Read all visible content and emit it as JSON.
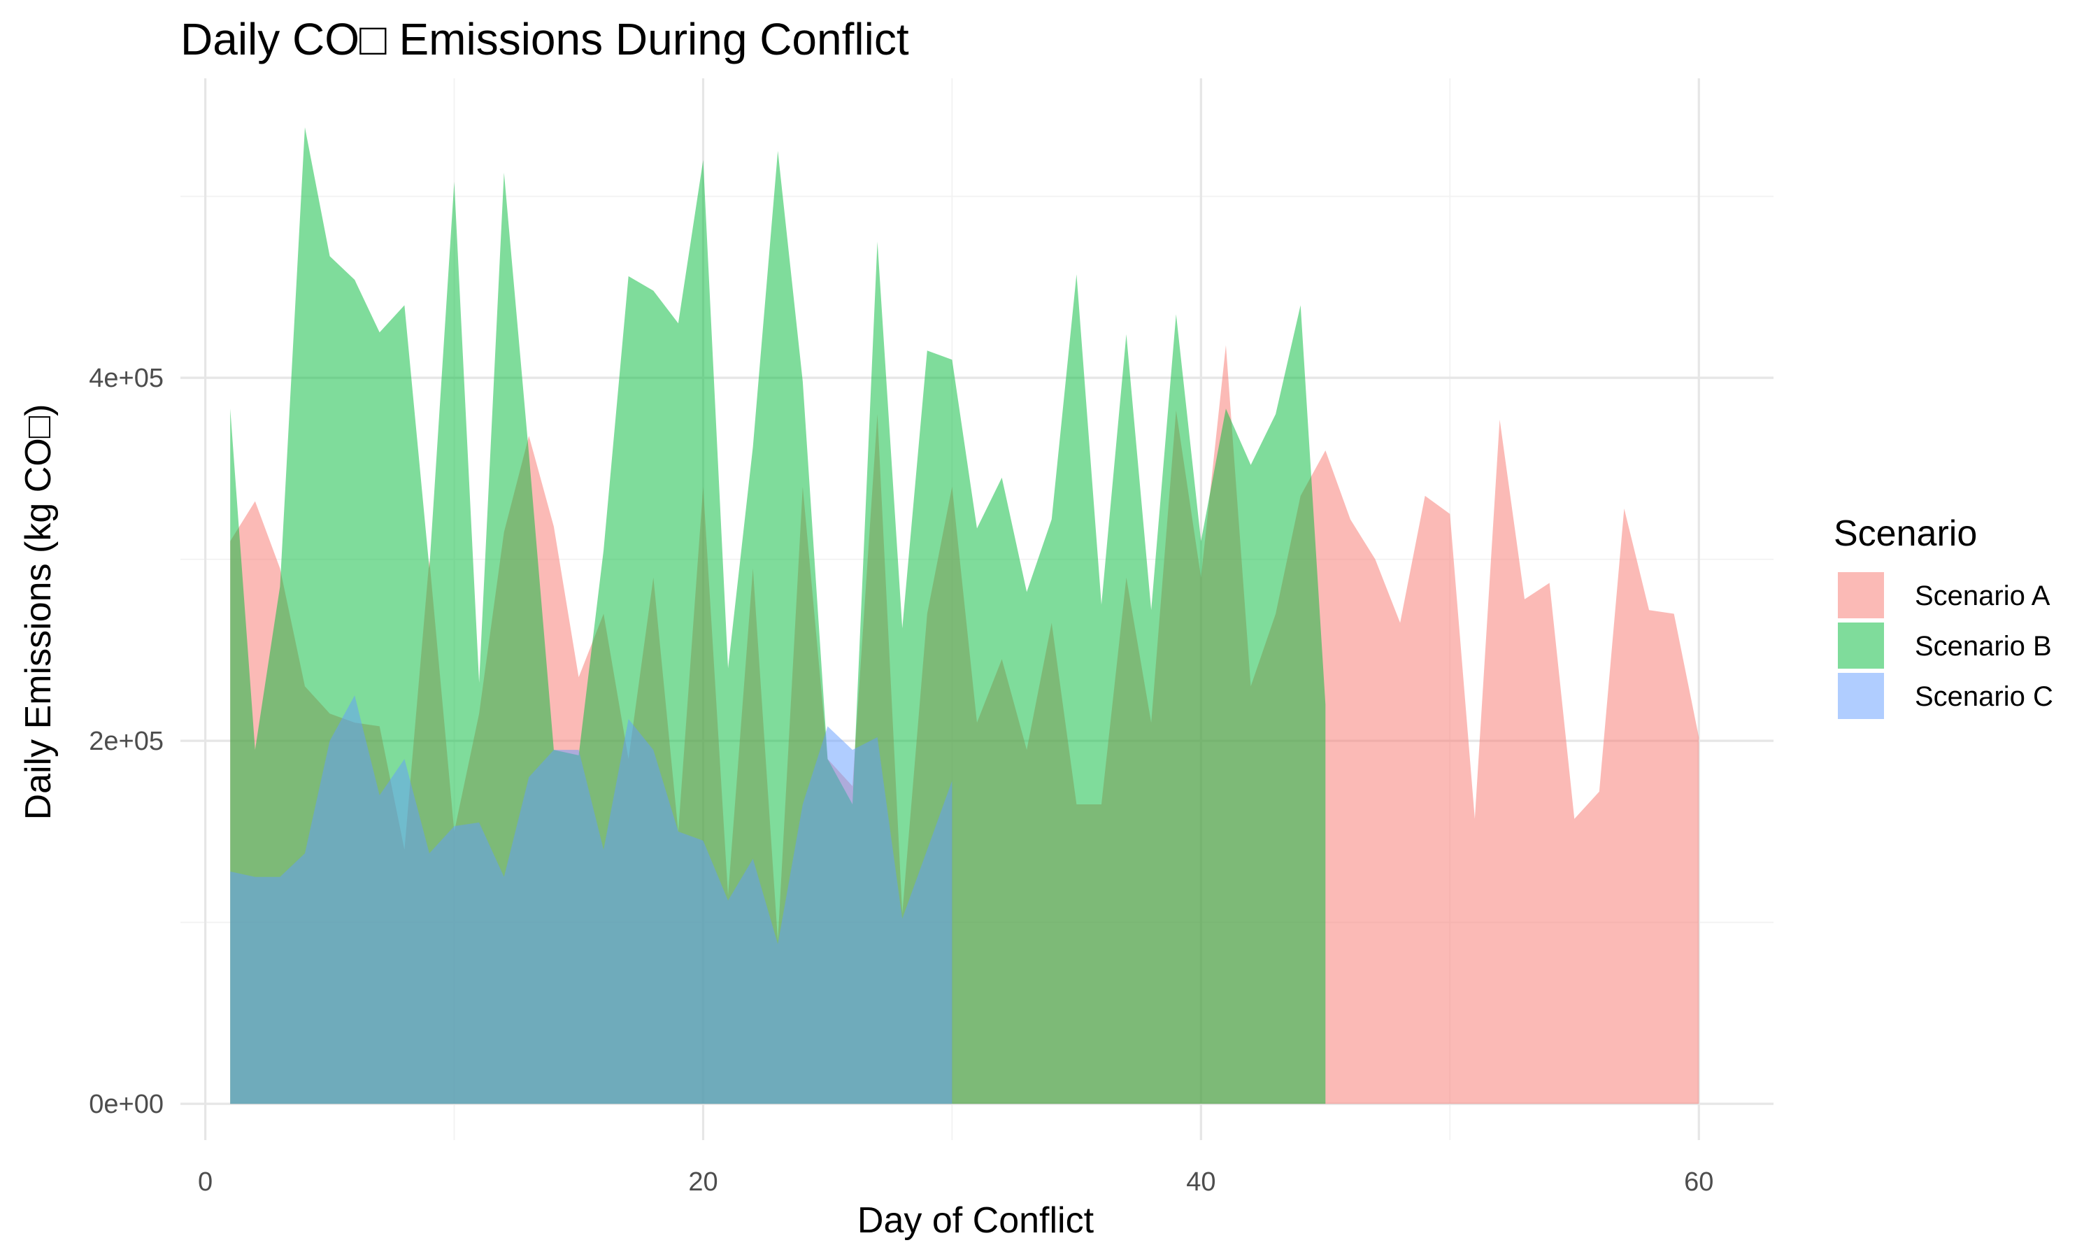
{
  "chart_data": {
    "type": "area",
    "title": "Daily CO□ Emissions During Conflict",
    "xlabel": "Day of Conflict",
    "ylabel": "Daily Emissions (kg CO□)",
    "xlim": [
      -1,
      63
    ],
    "ylim": [
      -20000,
      565000
    ],
    "x_ticks": [
      0,
      20,
      40,
      60
    ],
    "x_tick_labels": [
      "0",
      "20",
      "40",
      "60"
    ],
    "y_ticks": [
      0,
      200000,
      400000
    ],
    "y_tick_labels": [
      "0e+00",
      "2e+05",
      "4e+05"
    ],
    "grid": true,
    "legend_title": "Scenario",
    "legend_position": "right",
    "series": [
      {
        "name": "Scenario A",
        "color": "#F8766D",
        "opacity": 0.5,
        "x": [
          1,
          2,
          3,
          4,
          5,
          6,
          7,
          8,
          9,
          10,
          11,
          12,
          13,
          14,
          15,
          16,
          17,
          18,
          19,
          20,
          21,
          22,
          23,
          24,
          25,
          26,
          27,
          28,
          29,
          30,
          31,
          32,
          33,
          34,
          35,
          36,
          37,
          38,
          39,
          40,
          41,
          42,
          43,
          44,
          45,
          46,
          47,
          48,
          49,
          50,
          51,
          52,
          53,
          54,
          55,
          56,
          57,
          58,
          59,
          60
        ],
        "values": [
          310000,
          332000,
          295000,
          230000,
          215000,
          210000,
          208000,
          140000,
          300000,
          150000,
          215000,
          315000,
          368000,
          318000,
          235000,
          270000,
          190000,
          290000,
          150000,
          340000,
          115000,
          295000,
          90000,
          340000,
          190000,
          175000,
          380000,
          105000,
          270000,
          340000,
          210000,
          245000,
          195000,
          265000,
          165000,
          165000,
          290000,
          210000,
          382000,
          290000,
          418000,
          230000,
          270000,
          335000,
          360000,
          322000,
          300000,
          265000,
          335000,
          325000,
          157000,
          377000,
          278000,
          287000,
          157000,
          172000,
          328000,
          272000,
          270000,
          202000
        ]
      },
      {
        "name": "Scenario B",
        "color": "#00BA38",
        "opacity": 0.5,
        "x": [
          1,
          2,
          3,
          4,
          5,
          6,
          7,
          8,
          9,
          10,
          11,
          12,
          13,
          14,
          15,
          16,
          17,
          18,
          19,
          20,
          21,
          22,
          23,
          24,
          25,
          26,
          27,
          28,
          29,
          30,
          31,
          32,
          33,
          34,
          35,
          36,
          37,
          38,
          39,
          40,
          41,
          42,
          43,
          44,
          45
        ],
        "values": [
          383000,
          195000,
          285000,
          538000,
          467000,
          454000,
          425000,
          440000,
          295000,
          508000,
          232000,
          513000,
          358000,
          195000,
          192000,
          305000,
          456000,
          448000,
          430000,
          520000,
          240000,
          362000,
          525000,
          398000,
          190000,
          165000,
          475000,
          262000,
          415000,
          410000,
          317000,
          345000,
          282000,
          322000,
          457000,
          275000,
          424000,
          272000,
          435000,
          310000,
          383000,
          352000,
          380000,
          440000,
          220000
        ]
      },
      {
        "name": "Scenario C",
        "color": "#619CFF",
        "opacity": 0.5,
        "x": [
          1,
          2,
          3,
          4,
          5,
          6,
          7,
          8,
          9,
          10,
          11,
          12,
          13,
          14,
          15,
          16,
          17,
          18,
          19,
          20,
          21,
          22,
          23,
          24,
          25,
          26,
          27,
          28,
          29,
          30
        ],
        "values": [
          128000,
          125000,
          125000,
          138000,
          200000,
          225000,
          170000,
          190000,
          138000,
          153000,
          155000,
          125000,
          180000,
          195000,
          195000,
          140000,
          212000,
          195000,
          150000,
          145000,
          112000,
          135000,
          88000,
          165000,
          208000,
          195000,
          202000,
          102000,
          140000,
          178000
        ]
      }
    ]
  }
}
